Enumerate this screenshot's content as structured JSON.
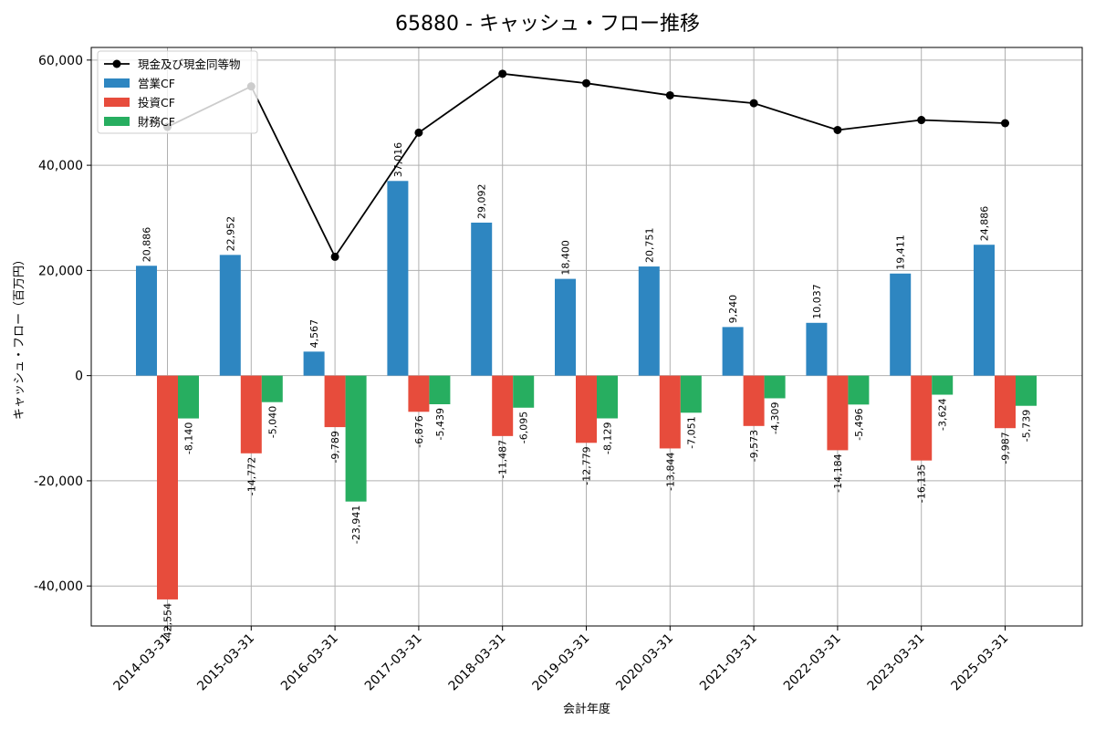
{
  "chart_data": {
    "type": "bar",
    "title": "65880 - キャッシュ・フロー推移",
    "xlabel": "会計年度",
    "ylabel": "キャッシュ・フロー（百万円）",
    "ylim": [
      -47600,
      62400
    ],
    "yticks": [
      -40000,
      -20000,
      0,
      20000,
      40000,
      60000
    ],
    "ytick_labels": [
      "-40,000",
      "-20,000",
      "0",
      "20,000",
      "40,000",
      "60,000"
    ],
    "grid": true,
    "legend_position": "top-left",
    "categories": [
      "2014-03-31",
      "2015-03-31",
      "2016-03-31",
      "2017-03-31",
      "2018-03-31",
      "2019-03-31",
      "2020-03-31",
      "2021-03-31",
      "2022-03-31",
      "2023-03-31",
      "2025-03-31"
    ],
    "series": [
      {
        "name": "営業CF",
        "kind": "bar",
        "color": "#2e86c1",
        "values": [
          20886,
          22952,
          4567,
          37016,
          29092,
          18400,
          20751,
          9240,
          10037,
          19411,
          24886
        ],
        "labels": [
          "20,886",
          "22,952",
          "4,567",
          "37,016",
          "29,092",
          "18,400",
          "20,751",
          "9,240",
          "10,037",
          "19,411",
          "24,886"
        ]
      },
      {
        "name": "投資CF",
        "kind": "bar",
        "color": "#e74c3c",
        "values": [
          -42554,
          -14772,
          -9789,
          -6876,
          -11487,
          -12779,
          -13844,
          -9573,
          -14184,
          -16135,
          -9987
        ],
        "labels": [
          "-42,554",
          "-14,772",
          "-9,789",
          "-6,876",
          "-11,487",
          "-12,779",
          "-13,844",
          "-9,573",
          "-14,184",
          "-16,135",
          "-9,987"
        ]
      },
      {
        "name": "財務CF",
        "kind": "bar",
        "color": "#27ae60",
        "values": [
          -8140,
          -5040,
          -23941,
          -5439,
          -6095,
          -8129,
          -7051,
          -4309,
          -5496,
          -3624,
          -5739
        ],
        "labels": [
          "-8,140",
          "-5,040",
          "-23,941",
          "-5,439",
          "-6,095",
          "-8,129",
          "-7,051",
          "-4,309",
          "-5,496",
          "-3,624",
          "-5,739"
        ]
      },
      {
        "name": "現金及び現金同等物",
        "kind": "line",
        "color": "#000000",
        "values": [
          47300,
          55000,
          22600,
          46200,
          57400,
          55600,
          53300,
          51800,
          46700,
          48600,
          48000
        ]
      }
    ]
  }
}
